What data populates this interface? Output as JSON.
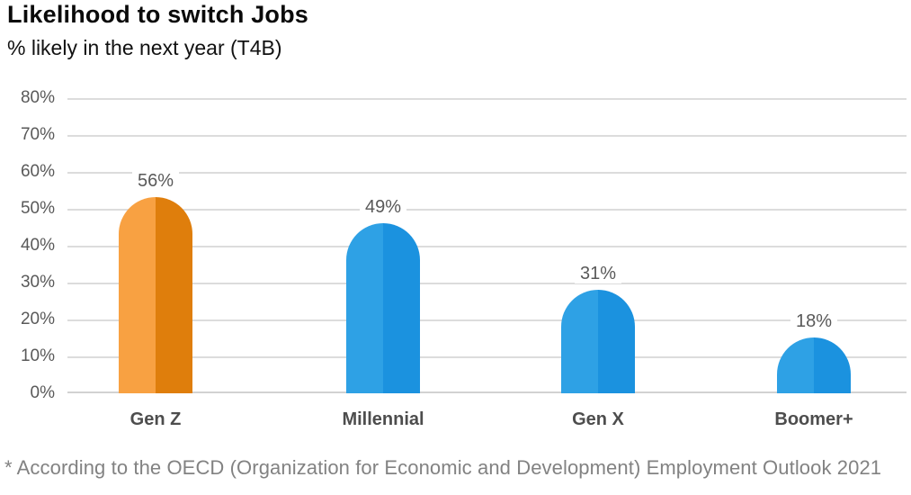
{
  "chart_data": {
    "type": "bar",
    "title": "Likelihood to switch Jobs",
    "subtitle": "% likely in the next year (T4B)",
    "categories": [
      "Gen Z",
      "Millennial",
      "Gen X",
      "Boomer+"
    ],
    "values": [
      56,
      49,
      31,
      18
    ],
    "value_labels": [
      "56%",
      "49%",
      "31%",
      "18%"
    ],
    "ylim": [
      0,
      80
    ],
    "ytick_labels": [
      "80%",
      "70%",
      "60%",
      "50%",
      "40%",
      "30%",
      "20%",
      "10%",
      "0%"
    ],
    "grid": true,
    "legend": false,
    "bar_styles": [
      {
        "category": "Gen Z",
        "color_light": "#F8A142",
        "color_dark": "#DF7E0C"
      },
      {
        "category": "Millennial",
        "color_light": "#2EA1E5",
        "color_dark": "#1B92DF"
      },
      {
        "category": "Gen X",
        "color_light": "#2EA1E5",
        "color_dark": "#1B92DF"
      },
      {
        "category": "Boomer+",
        "color_light": "#2EA1E5",
        "color_dark": "#1B92DF"
      }
    ],
    "footnote": "* According to the OECD (Organization for Economic and Development) Employment Outlook 2021"
  },
  "colors": {
    "background": "#FFFFFF",
    "title_text": "#0A0A0A",
    "subtitle_text": "#111111",
    "axis_tick_text": "#595959",
    "value_label_text": "#595959",
    "category_label_text": "#4D4D4D",
    "gridline": "#DCDCDC",
    "axis_line": "#D2D2D2",
    "footnote_text": "#828282"
  }
}
